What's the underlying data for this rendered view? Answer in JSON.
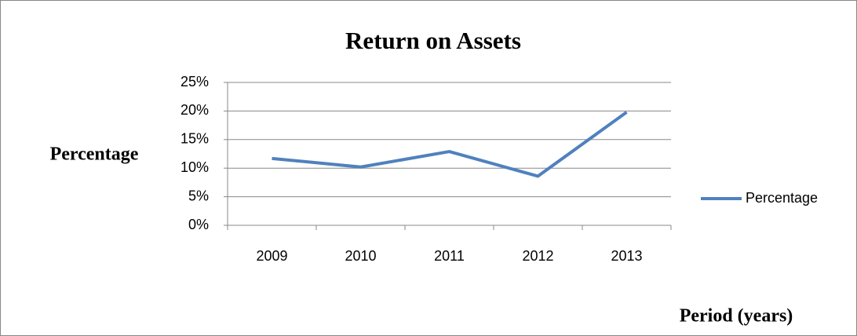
{
  "chart_data": {
    "type": "line",
    "title": "Return on Assets",
    "y_label": "Percentage",
    "x_label": "Period (years)",
    "categories": [
      "2009",
      "2010",
      "2011",
      "2012",
      "2013"
    ],
    "series": [
      {
        "name": "Percentage",
        "color": "#4f81bd",
        "values": [
          11.7,
          10.2,
          12.9,
          8.6,
          19.8
        ]
      }
    ],
    "ylim": [
      0,
      25
    ],
    "yticks": [
      {
        "value": 0,
        "label": "0%"
      },
      {
        "value": 5,
        "label": "5%"
      },
      {
        "value": 10,
        "label": "10%"
      },
      {
        "value": 15,
        "label": "15%"
      },
      {
        "value": 20,
        "label": "20%"
      },
      {
        "value": 25,
        "label": "25%"
      }
    ],
    "grid": true,
    "legend": "right"
  }
}
